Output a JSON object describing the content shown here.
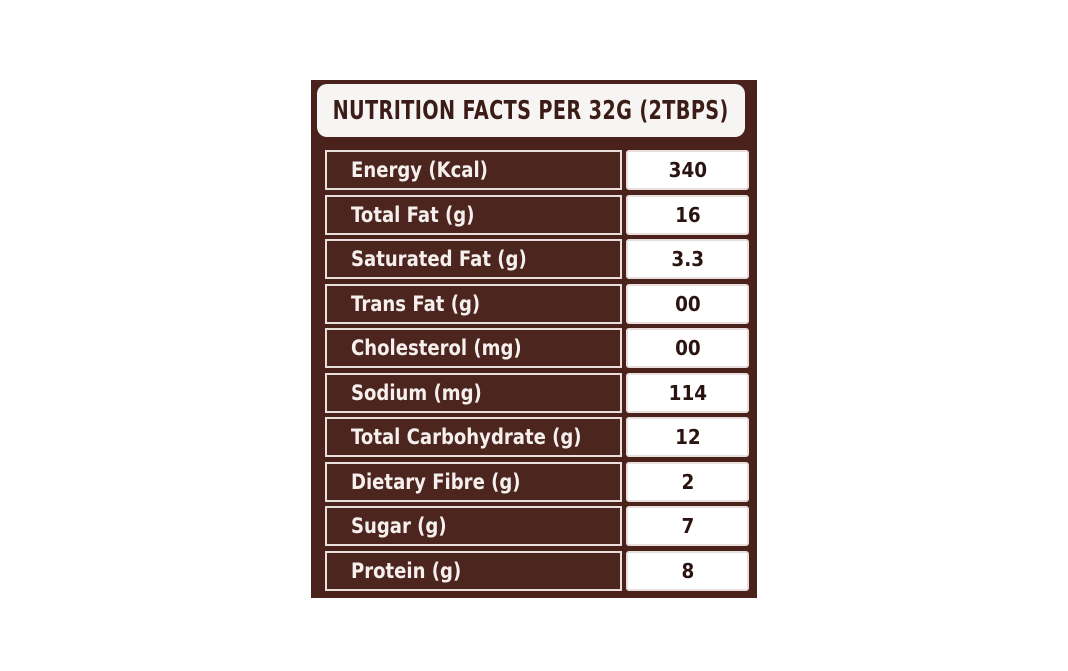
{
  "title": "NUTRITION FACTS PER 32G (2TBPS)",
  "rows": [
    {
      "label": "Energy (Kcal)",
      "value": "340"
    },
    {
      "label": "Total Fat (g)",
      "value": "16"
    },
    {
      "label": "Saturated Fat (g)",
      "value": "3.3"
    },
    {
      "label": "Trans Fat (g)",
      "value": "00"
    },
    {
      "label": "Cholesterol (mg)",
      "value": "00"
    },
    {
      "label": "Sodium (mg)",
      "value": "114"
    },
    {
      "label": "Total Carbohydrate (g)",
      "value": "12"
    },
    {
      "label": "Dietary Fibre (g)",
      "value": "2"
    },
    {
      "label": "Sugar (g)",
      "value": "7"
    },
    {
      "label": "Protein (g)",
      "value": "8"
    }
  ],
  "colors": {
    "panel": "#4a211b",
    "label_bg": "#4d251f",
    "title_bg": "#f7f4f4",
    "value_bg": "#ffffff"
  }
}
